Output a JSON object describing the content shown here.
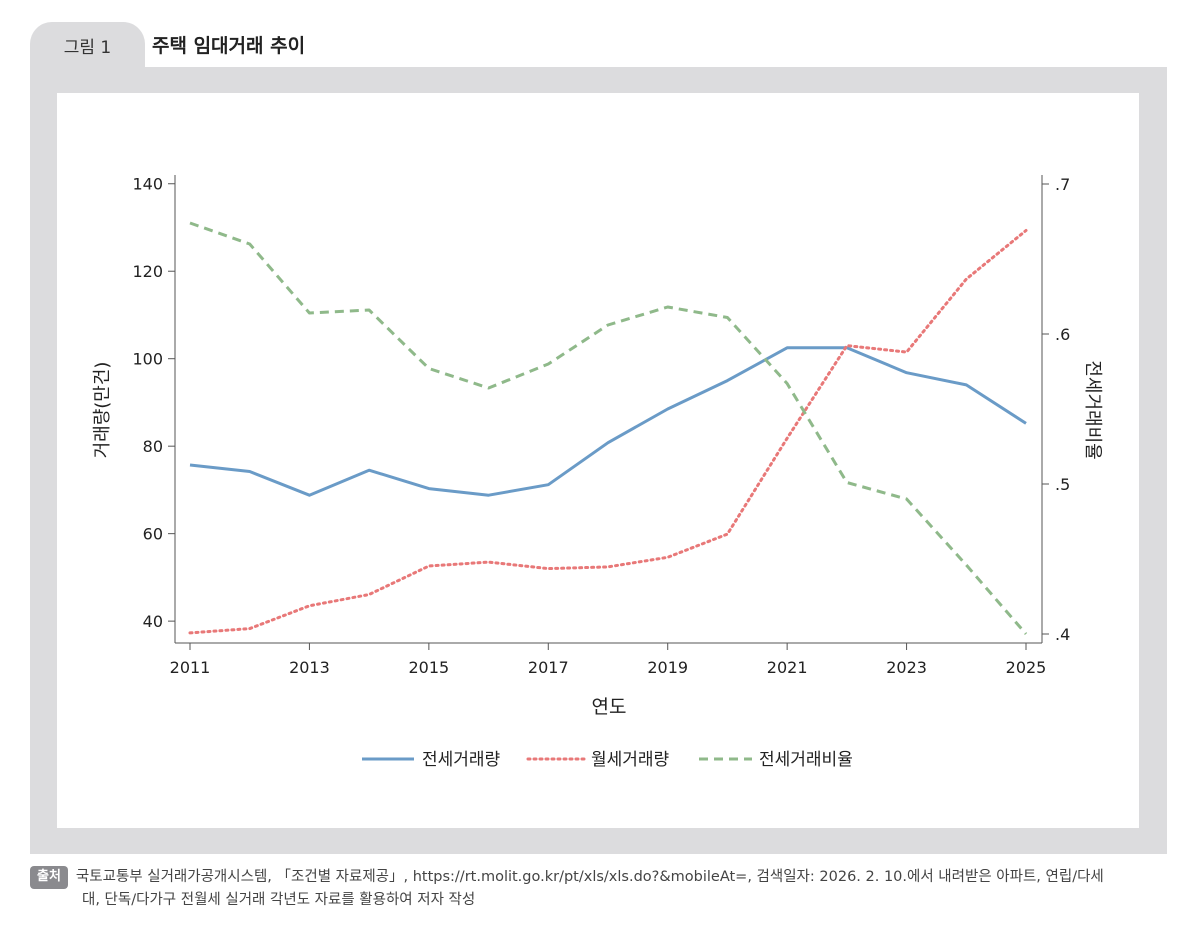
{
  "figure": {
    "label": "그림 1",
    "title": "주택 임대거래 추이"
  },
  "source": {
    "badge": "출처",
    "line1": "국토교통부 실거래가공개시스템, 「조건별 자료제공」, https://rt.molit.go.kr/pt/xls/xls.do?&mobileAt=, 검색일자: 2026. 2. 10.에서 내려받은 아파트, 연립/다세",
    "line2": "대, 단독/다가구 전월세 실거래 각년도 자료를 활용하여 저자 작성"
  },
  "colors": {
    "jeonse": "#6a9bc7",
    "wolse": "#e87878",
    "ratio": "#8fb98a"
  },
  "chart_data": {
    "type": "line",
    "xlabel": "연도",
    "ylabel": "거래량(만건)",
    "y2label": "전세거래비율",
    "x": [
      2011,
      2012,
      2013,
      2014,
      2015,
      2016,
      2017,
      2018,
      2019,
      2020,
      2021,
      2022,
      2023,
      2024,
      2025
    ],
    "xticks": [
      "2011",
      "2013",
      "2015",
      "2017",
      "2019",
      "2021",
      "2023",
      "2025"
    ],
    "ylim": [
      35,
      142
    ],
    "yticks": [
      "40",
      "60",
      "80",
      "100",
      "120",
      "140"
    ],
    "y2lim": [
      0.394,
      0.706
    ],
    "y2ticks": [
      ".4",
      ".5",
      ".6",
      ".7"
    ],
    "legend_position": "bottom",
    "series": [
      {
        "name": "전세거래량",
        "axis": "left",
        "style": "solid",
        "values": [
          75.7,
          74.2,
          68.8,
          74.5,
          70.3,
          68.8,
          71.2,
          80.8,
          88.5,
          95.0,
          102.5,
          102.5,
          96.8,
          94.0,
          85.2
        ]
      },
      {
        "name": "월세거래량",
        "axis": "left",
        "style": "dotted",
        "values": [
          37.3,
          38.3,
          43.5,
          46.1,
          52.6,
          53.5,
          52.0,
          52.4,
          54.6,
          59.9,
          81.8,
          103.0,
          101.5,
          118.2,
          129.3
        ]
      },
      {
        "name": "전세거래비율",
        "axis": "right",
        "style": "dashed",
        "values": [
          0.674,
          0.66,
          0.614,
          0.616,
          0.577,
          0.564,
          0.58,
          0.606,
          0.618,
          0.611,
          0.567,
          0.501,
          0.49,
          0.446,
          0.4
        ]
      }
    ]
  }
}
